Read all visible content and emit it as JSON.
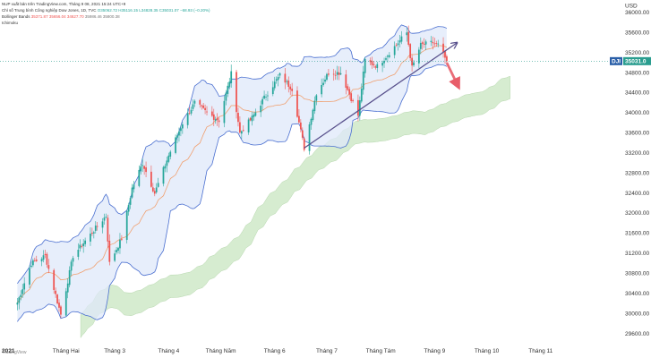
{
  "header": {
    "line1": "NUP xuất bản trên TradingView.com, Tháng 9 08, 2021 15:24 UTC+9",
    "line2_symbol": "Chỉ số Trung bình Công nghiệp Dow Jones, 1D, TVC",
    "line2_values": "O35062.72 H35116.15 L34828.35 C35031.07 −68.93 (−0.20%)",
    "line3_name": "Bollinger Bands",
    "line3_values": "35371.87 35656.04 34627.70",
    "line3_extra": "35986.46 35800.38",
    "line4": "Ichimoku"
  },
  "currency": "USD",
  "price_label": {
    "symbol": "DJI",
    "value": "35031.0"
  },
  "watermark": "TradingView",
  "colors": {
    "bull": "#26a69a",
    "bear": "#ef5350",
    "bb_band": "#4a6fd0",
    "bb_fill": "#dfe8fa",
    "bb_basis": "#f0a070",
    "cloud_bull": "#c8e6c0",
    "cloud_bear": "#f8d4d4",
    "arrow": "#58508c",
    "target_arrow": "#e85d69",
    "price_line": "#2a9d8f"
  },
  "chart_data": {
    "type": "candlestick",
    "title": "Chỉ số Trung bình Công nghiệp Dow Jones, 1D, TVC",
    "currency": "USD",
    "last_price": 35031.07,
    "ylim": [
      29400,
      36250
    ],
    "yticks": [
      29600,
      30000,
      30400,
      30800,
      31200,
      31600,
      32000,
      32400,
      32800,
      33200,
      33600,
      34000,
      34400,
      34800,
      35200,
      35600,
      36000
    ],
    "ytick_labels": [
      "29600.00",
      "30000.00",
      "30400.00",
      "30800.00",
      "31200.00",
      "31600.00",
      "32000.00",
      "32400.00",
      "32800.00",
      "33200.00",
      "33600.00",
      "34000.00",
      "34400.00",
      "34800.00",
      "35200.00",
      "35600.00",
      "36000.00"
    ],
    "xticks": [
      "2021",
      "Tháng Hai",
      "Tháng 3",
      "Tháng 4",
      "Tháng Năm",
      "Tháng 6",
      "Tháng 7",
      "Tháng Tám",
      "Tháng 9",
      "Tháng 10",
      "Tháng 11"
    ],
    "close_points": [
      [
        "2021-01-04",
        30220
      ],
      [
        "2021-01-12",
        31000
      ],
      [
        "2021-01-20",
        31150
      ],
      [
        "2021-01-29",
        29980
      ],
      [
        "2021-02-05",
        31150
      ],
      [
        "2021-02-12",
        31450
      ],
      [
        "2021-02-24",
        31950
      ],
      [
        "2021-02-26",
        31000
      ],
      [
        "2021-03-05",
        31500
      ],
      [
        "2021-03-11",
        32500
      ],
      [
        "2021-03-17",
        33000
      ],
      [
        "2021-03-24",
        32400
      ],
      [
        "2021-04-01",
        33150
      ],
      [
        "2021-04-09",
        33800
      ],
      [
        "2021-04-16",
        34200
      ],
      [
        "2021-04-23",
        34000
      ],
      [
        "2021-04-30",
        33850
      ],
      [
        "2021-05-07",
        34780
      ],
      [
        "2021-05-12",
        33600
      ],
      [
        "2021-05-19",
        33900
      ],
      [
        "2021-05-26",
        34300
      ],
      [
        "2021-06-04",
        34750
      ],
      [
        "2021-06-11",
        34480
      ],
      [
        "2021-06-18",
        33300
      ],
      [
        "2021-06-25",
        34400
      ],
      [
        "2021-07-02",
        34800
      ],
      [
        "2021-07-09",
        34800
      ],
      [
        "2021-07-19",
        33950
      ],
      [
        "2021-07-23",
        35050
      ],
      [
        "2021-07-30",
        34930
      ],
      [
        "2021-08-06",
        35200
      ],
      [
        "2021-08-16",
        35600
      ],
      [
        "2021-08-19",
        34900
      ],
      [
        "2021-08-24",
        35350
      ],
      [
        "2021-08-31",
        35400
      ],
      [
        "2021-09-03",
        35350
      ],
      [
        "2021-09-08",
        35031
      ]
    ],
    "annotations": [
      {
        "type": "trendline",
        "from": [
          "2021-06-18",
          33300
        ],
        "to": [
          "2021-09-14",
          35400
        ]
      },
      {
        "type": "arrow",
        "from": [
          "2021-09-08",
          35000
        ],
        "to": [
          "2021-09-15",
          34500
        ]
      }
    ]
  }
}
